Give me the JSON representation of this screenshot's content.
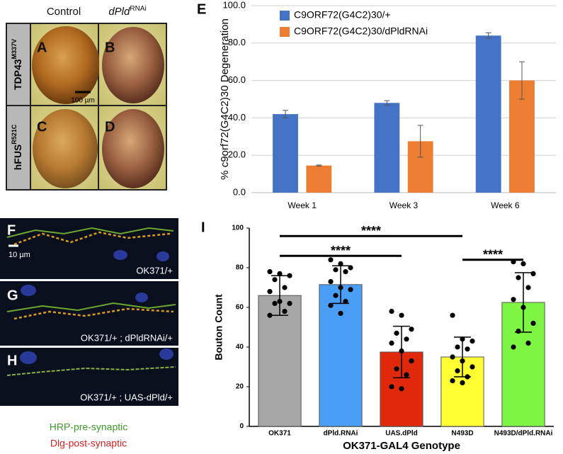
{
  "panels": {
    "eye_columns": [
      {
        "text": "Control"
      },
      {
        "text": "dPld",
        "sup": "RNAi"
      }
    ],
    "eye_rows": [
      {
        "text": "TDP43",
        "sup": "M337V"
      },
      {
        "text": "hFUS",
        "sup": "R521C"
      }
    ],
    "eye_letters": [
      "A",
      "B",
      "C",
      "D"
    ],
    "eye_scale": "100 µm",
    "nmj_letters": [
      "F",
      "G",
      "H"
    ],
    "nmj_scale": "10 µm",
    "nmj_genotypes": [
      "OK371/+",
      "OK371/+ ; dPldRNAi/+",
      "OK371/+ ; UAS-dPld/+"
    ],
    "stain_legend": [
      {
        "text": "HRP-pre-synaptic",
        "color": "#3a9a2a"
      },
      {
        "text": "Dlg-post-synaptic",
        "color": "#d42020"
      }
    ],
    "chart_letters": [
      "E",
      "I"
    ]
  },
  "chart_data": [
    {
      "type": "bar",
      "y_label": "% c9orf72(G4C2)30 Degeneration",
      "categories": [
        "Week 1",
        "Week 3",
        "Week 6"
      ],
      "series": [
        {
          "name": "C9ORF72(G4C2)30/+",
          "color": "#4472c4",
          "values": [
            42,
            48,
            84
          ],
          "errors": [
            2,
            1.2,
            1.5
          ]
        },
        {
          "name": "C9ORF72(G4C2)30/dPldRNAi",
          "color": "#ed7d31",
          "values": [
            14.5,
            27.5,
            60
          ],
          "errors": [
            0.3,
            8.5,
            10
          ]
        }
      ],
      "ylim": [
        0,
        100
      ],
      "yticks": [
        {
          "value": 0,
          "label": "0.0"
        },
        {
          "value": 20,
          "label": "20.0"
        },
        {
          "value": 40,
          "label": "40.0"
        },
        {
          "value": 60,
          "label": "60.0"
        },
        {
          "value": 80,
          "label": "80.0"
        },
        {
          "value": 100,
          "label": "100.0"
        }
      ],
      "grid": true
    },
    {
      "type": "bar",
      "x_label": "OK371-GAL4 Genotype",
      "y_label": "Bouton Count",
      "categories": [
        "OK371",
        "dPld.RNAi",
        "UAS.dPld",
        "N493D",
        "N493D/dPld.RNAi"
      ],
      "values": [
        66,
        71.5,
        37.5,
        35,
        62.5
      ],
      "errors": [
        10,
        9.5,
        13,
        10,
        15
      ],
      "colors": [
        "#a6a6a6",
        "#4a9ef5",
        "#e0280a",
        "#ffff33",
        "#7ef542"
      ],
      "points": [
        [
          78,
          77,
          76,
          74,
          70,
          68,
          63,
          62,
          62,
          58,
          56
        ],
        [
          84,
          82,
          80,
          79,
          78,
          73,
          70,
          69,
          66,
          63,
          61,
          57
        ],
        [
          58,
          56,
          49,
          47,
          44,
          42,
          38,
          33,
          29,
          26,
          20,
          19
        ],
        [
          56,
          44,
          43,
          40,
          39,
          35,
          33,
          30,
          28,
          25,
          23,
          22
        ],
        [
          83,
          82,
          77,
          75,
          70,
          64,
          60,
          52,
          48,
          42,
          40
        ]
      ],
      "annotations": [
        {
          "text": "****",
          "from": "OK371",
          "to": "N493D",
          "y": 96
        },
        {
          "text": "****",
          "from": "OK371",
          "to": "UAS.dPld",
          "y": 86
        },
        {
          "text": "****",
          "from": "N493D",
          "to": "N493D/dPld.RNAi",
          "y": 84
        }
      ],
      "ylim": [
        0,
        100
      ],
      "yticks": [
        0,
        20,
        40,
        60,
        80,
        100
      ],
      "grid": false
    }
  ]
}
